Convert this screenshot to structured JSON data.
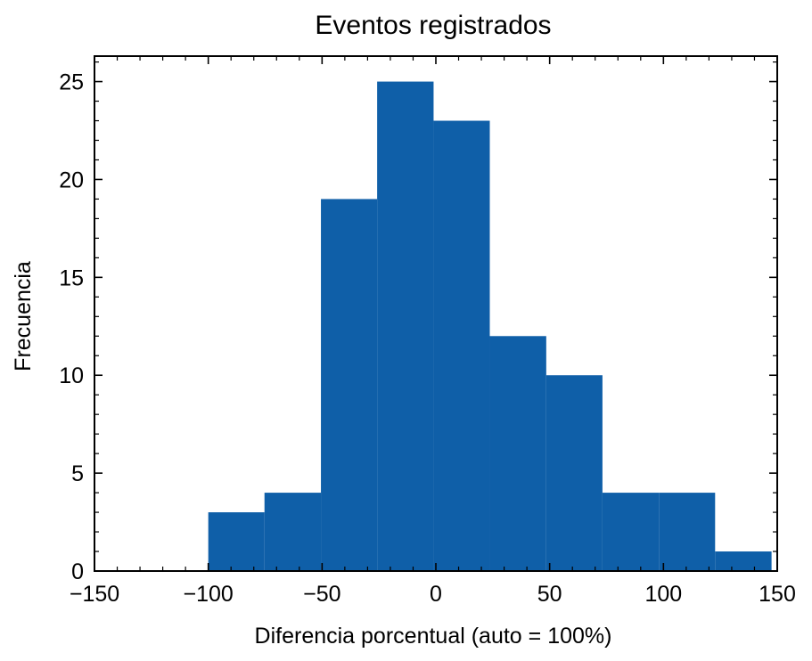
{
  "chart_data": {
    "type": "bar",
    "subtype": "histogram",
    "title": "Eventos registrados",
    "xlabel": "Diferencia porcentual (auto = 100%)",
    "ylabel": "Frecuencia",
    "xlim": [
      -150,
      150
    ],
    "ylim": [
      0,
      26.3
    ],
    "xticks": [
      -150,
      -100,
      -50,
      0,
      50,
      100,
      150
    ],
    "xtick_labels": [
      "−150",
      "−100",
      "−50",
      "0",
      "50",
      "100",
      "150"
    ],
    "yticks": [
      0,
      5,
      10,
      15,
      20,
      25
    ],
    "ytick_labels": [
      "0",
      "5",
      "10",
      "15",
      "20",
      "25"
    ],
    "bin_edges": [
      -100,
      -75.3,
      -50.5,
      -25.8,
      -1.0,
      23.7,
      48.5,
      73.2,
      98.0,
      122.7,
      147.5
    ],
    "series": [
      {
        "values": [
          3,
          4,
          19,
          25,
          23,
          12,
          10,
          4,
          4,
          1
        ]
      }
    ],
    "bar_color": "#0f5fa8",
    "grid": false,
    "legend": "none"
  }
}
